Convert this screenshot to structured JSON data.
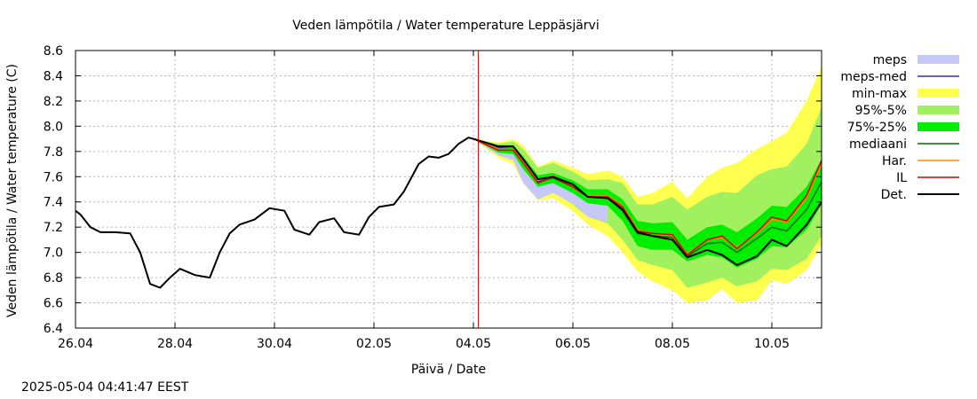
{
  "chart_data": {
    "type": "line",
    "title": "Veden lämpötila / Water temperature Leppäsjärvi",
    "xlabel": "Päivä / Date",
    "ylabel": "Veden lämpötila / Water temperature (C)",
    "x_ticks": [
      "26.04",
      "28.04",
      "30.04",
      "02.05",
      "04.05",
      "06.05",
      "08.05",
      "10.05"
    ],
    "x_range_days": [
      0,
      15
    ],
    "ylim": [
      6.4,
      8.6
    ],
    "y_ticks": [
      6.4,
      6.6,
      6.8,
      7.0,
      7.2,
      7.4,
      7.6,
      7.8,
      8.0,
      8.2,
      8.4,
      8.6
    ],
    "grid": true,
    "legend_position": "right",
    "forecast_marker_day": 8.1,
    "legend": [
      {
        "name": "meps",
        "color": "#c8c8f8",
        "kind": "fill"
      },
      {
        "name": "meps-med",
        "color": "#3030b0",
        "kind": "line"
      },
      {
        "name": "min-max",
        "color": "#ffff50",
        "kind": "fill"
      },
      {
        "name": "95%-5%",
        "color": "#a0f060",
        "kind": "fill"
      },
      {
        "name": "75%-25%",
        "color": "#00ee00",
        "kind": "fill"
      },
      {
        "name": "mediaani",
        "color": "#007000",
        "kind": "line"
      },
      {
        "name": "Har.",
        "color": "#ff8c00",
        "kind": "line"
      },
      {
        "name": "IL",
        "color": "#dd0000",
        "kind": "line"
      },
      {
        "name": "Det.",
        "color": "#000000",
        "kind": "line"
      }
    ],
    "observed": {
      "name": "Det.",
      "x": [
        0,
        0.1,
        0.3,
        0.5,
        0.8,
        1.1,
        1.3,
        1.5,
        1.7,
        1.9,
        2.1,
        2.4,
        2.7,
        2.9,
        3.1,
        3.3,
        3.6,
        3.9,
        4.2,
        4.4,
        4.7,
        4.9,
        5.2,
        5.4,
        5.7,
        5.9,
        6.1,
        6.4,
        6.6,
        6.9,
        7.1,
        7.3,
        7.5,
        7.7,
        7.9,
        8.0
      ],
      "y": [
        7.33,
        7.3,
        7.2,
        7.16,
        7.16,
        7.15,
        7.0,
        6.75,
        6.72,
        6.8,
        6.87,
        6.82,
        6.8,
        7.0,
        7.15,
        7.22,
        7.26,
        7.35,
        7.33,
        7.18,
        7.14,
        7.24,
        7.27,
        7.16,
        7.14,
        7.28,
        7.36,
        7.38,
        7.48,
        7.7,
        7.76,
        7.75,
        7.78,
        7.86,
        7.91,
        7.9
      ]
    },
    "forecast": {
      "x": [
        8.0,
        8.5,
        8.8,
        9.0,
        9.3,
        9.6,
        10.0,
        10.3,
        10.7,
        11.0,
        11.3,
        11.6,
        12.0,
        12.3,
        12.7,
        13.0,
        13.3,
        13.7,
        14.0,
        14.3,
        14.7,
        15.0
      ],
      "detministic": [
        7.9,
        7.84,
        7.84,
        7.74,
        7.58,
        7.6,
        7.54,
        7.44,
        7.43,
        7.34,
        7.16,
        7.13,
        7.1,
        6.96,
        7.02,
        6.98,
        6.9,
        6.97,
        7.1,
        7.05,
        7.22,
        7.4
      ],
      "il": [
        7.9,
        7.81,
        7.81,
        7.71,
        7.55,
        7.6,
        7.52,
        7.44,
        7.44,
        7.36,
        7.17,
        7.15,
        7.14,
        6.98,
        7.1,
        7.13,
        7.03,
        7.16,
        7.28,
        7.25,
        7.45,
        7.73
      ],
      "har": [
        7.9,
        7.82,
        7.82,
        7.72,
        7.57,
        7.61,
        7.52,
        7.45,
        7.45,
        7.37,
        7.18,
        7.15,
        7.13,
        6.99,
        7.1,
        7.12,
        7.04,
        7.15,
        7.26,
        7.24,
        7.43,
        7.7
      ],
      "median": [
        7.9,
        7.82,
        7.82,
        7.72,
        7.56,
        7.59,
        7.52,
        7.44,
        7.43,
        7.33,
        7.15,
        7.13,
        7.12,
        6.97,
        7.07,
        7.08,
        7.0,
        7.11,
        7.2,
        7.17,
        7.34,
        7.56
      ],
      "meps_med": [
        7.9,
        7.83,
        7.82,
        7.73,
        7.56,
        7.6,
        7.52,
        7.44,
        7.43,
        7.34
      ],
      "p25": [
        7.9,
        7.79,
        7.78,
        7.66,
        7.52,
        7.55,
        7.47,
        7.39,
        7.37,
        7.25,
        7.05,
        7.02,
        7.02,
        6.93,
        6.98,
        6.96,
        6.88,
        6.95,
        7.05,
        7.04,
        7.18,
        7.38
      ],
      "p75": [
        7.9,
        7.85,
        7.85,
        7.76,
        7.61,
        7.63,
        7.57,
        7.5,
        7.5,
        7.42,
        7.25,
        7.23,
        7.24,
        7.1,
        7.2,
        7.22,
        7.16,
        7.27,
        7.37,
        7.36,
        7.52,
        7.74
      ],
      "p5": [
        7.9,
        7.77,
        7.74,
        7.58,
        7.44,
        7.48,
        7.38,
        7.28,
        7.23,
        7.1,
        6.94,
        6.9,
        6.86,
        6.72,
        6.76,
        6.8,
        6.73,
        6.77,
        6.87,
        6.86,
        6.95,
        7.13
      ],
      "p95": [
        7.9,
        7.86,
        7.88,
        7.82,
        7.67,
        7.71,
        7.64,
        7.57,
        7.58,
        7.55,
        7.38,
        7.38,
        7.44,
        7.34,
        7.44,
        7.48,
        7.47,
        7.61,
        7.66,
        7.68,
        7.86,
        8.15
      ],
      "min": [
        7.9,
        7.75,
        7.7,
        7.55,
        7.41,
        7.43,
        7.33,
        7.22,
        7.13,
        7.0,
        6.85,
        6.77,
        6.7,
        6.6,
        6.62,
        6.71,
        6.6,
        6.62,
        6.78,
        6.75,
        6.86,
        7.06
      ],
      "max": [
        7.9,
        7.87,
        7.9,
        7.85,
        7.68,
        7.73,
        7.67,
        7.62,
        7.65,
        7.6,
        7.44,
        7.47,
        7.56,
        7.43,
        7.6,
        7.67,
        7.71,
        7.82,
        7.88,
        7.95,
        8.2,
        8.48
      ],
      "meps_low": [
        7.9,
        7.77,
        7.73,
        7.55,
        7.42,
        7.47,
        7.39,
        7.28,
        7.24
      ],
      "meps_high": [
        7.9,
        7.85,
        7.85,
        7.75,
        7.6,
        7.62,
        7.56,
        7.48,
        7.47
      ]
    }
  },
  "footer": {
    "timestamp": "2025-05-04 04:41:47 EEST"
  }
}
